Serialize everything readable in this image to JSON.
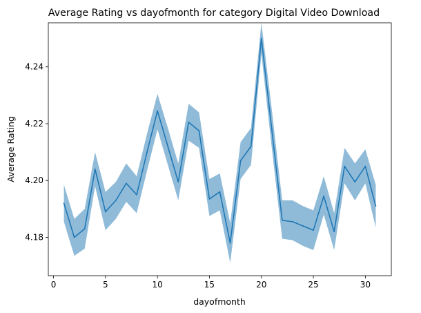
{
  "chart_data": {
    "type": "line",
    "title": "Average Rating vs dayofmonth for category Digital Video Download",
    "xlabel": "dayofmonth",
    "ylabel": "Average Rating",
    "xlim": [
      -0.5,
      32.5
    ],
    "ylim": [
      4.1665,
      4.2555
    ],
    "x_ticks": [
      0,
      5,
      10,
      15,
      20,
      25,
      30
    ],
    "y_ticks": [
      4.18,
      4.2,
      4.22,
      4.24
    ],
    "grid": false,
    "legend": "none",
    "line_color": "#1f77b4",
    "band_color": "#1f77b4",
    "series": [
      {
        "x": [
          1,
          2,
          3,
          4,
          5,
          6,
          7,
          8,
          9,
          10,
          11,
          12,
          13,
          14,
          15,
          16,
          17,
          18,
          19,
          20,
          21,
          22,
          23,
          24,
          25,
          26,
          27,
          28,
          29,
          30,
          31
        ],
        "values": [
          4.192,
          4.18,
          4.183,
          4.204,
          4.189,
          4.193,
          4.199,
          4.195,
          4.21,
          4.2245,
          4.212,
          4.1995,
          4.2205,
          4.2175,
          4.1935,
          4.196,
          4.178,
          4.207,
          4.212,
          4.25,
          4.218,
          4.186,
          4.1855,
          4.184,
          4.1825,
          4.1945,
          4.182,
          4.205,
          4.1995,
          4.205,
          4.191
        ],
        "lower": [
          4.1855,
          4.1735,
          4.176,
          4.198,
          4.1825,
          4.1865,
          4.1925,
          4.1885,
          4.2035,
          4.218,
          4.2055,
          4.193,
          4.214,
          4.2115,
          4.1875,
          4.1895,
          4.171,
          4.2005,
          4.2055,
          4.2445,
          4.2115,
          4.1795,
          4.179,
          4.177,
          4.1755,
          4.188,
          4.1755,
          4.199,
          4.193,
          4.199,
          4.1835
        ],
        "upper": [
          4.1985,
          4.1865,
          4.19,
          4.21,
          4.196,
          4.1995,
          4.206,
          4.2015,
          4.2165,
          4.2305,
          4.2185,
          4.206,
          4.227,
          4.224,
          4.2005,
          4.2025,
          4.185,
          4.2135,
          4.2185,
          4.2555,
          4.225,
          4.193,
          4.193,
          4.191,
          4.1895,
          4.2015,
          4.1885,
          4.2115,
          4.206,
          4.211,
          4.1985
        ]
      }
    ]
  }
}
